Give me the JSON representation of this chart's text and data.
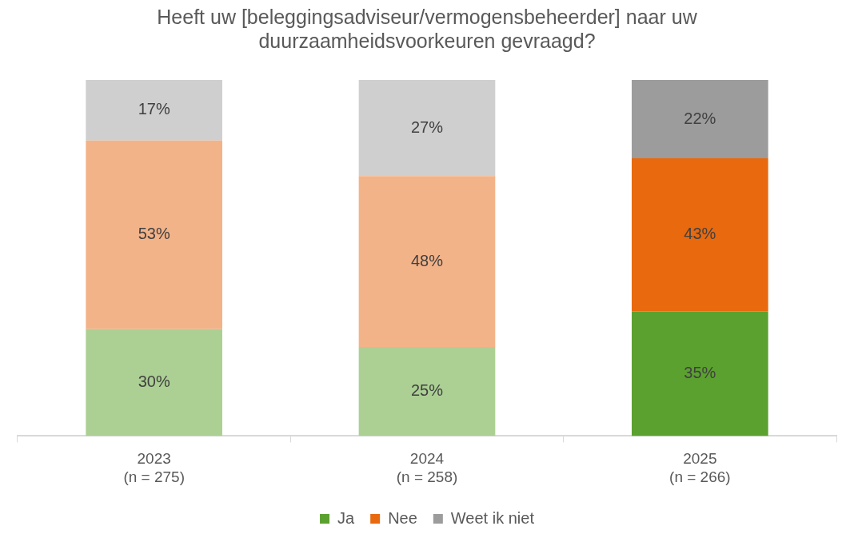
{
  "chart_data": {
    "type": "bar",
    "title": "Heeft uw [beleggingsadviseur/vermogensbeheerder] naar uw\nduurzaamheidsvoorkeuren gevraagd?",
    "categories": [
      "2023\n(n = 275)",
      "2024\n(n = 258)",
      "2025\n(n = 266)"
    ],
    "stacked": true,
    "legend": "bottom",
    "grid": false,
    "tick_labels": "x",
    "series": [
      {
        "name": "Ja",
        "color": "#5ba12f",
        "colors": [
          "#acd094",
          "#acd094",
          "#5ba12f"
        ],
        "values": [
          30,
          25,
          35
        ],
        "value_labels": [
          "30%",
          "25%",
          "35%"
        ]
      },
      {
        "name": "Nee",
        "color": "#e8690e",
        "colors": [
          "#f3b389",
          "#f3b389",
          "#e8690e"
        ],
        "values": [
          53,
          48,
          43
        ],
        "value_labels": [
          "53%",
          "48%",
          "43%"
        ]
      },
      {
        "name": "Weet ik niet",
        "color": "#9c9c9c",
        "colors": [
          "#cfcfcf",
          "#cfcfcf",
          "#9c9c9c"
        ],
        "values": [
          17,
          27,
          22
        ],
        "value_labels": [
          "17%",
          "27%",
          "22%"
        ]
      }
    ]
  }
}
